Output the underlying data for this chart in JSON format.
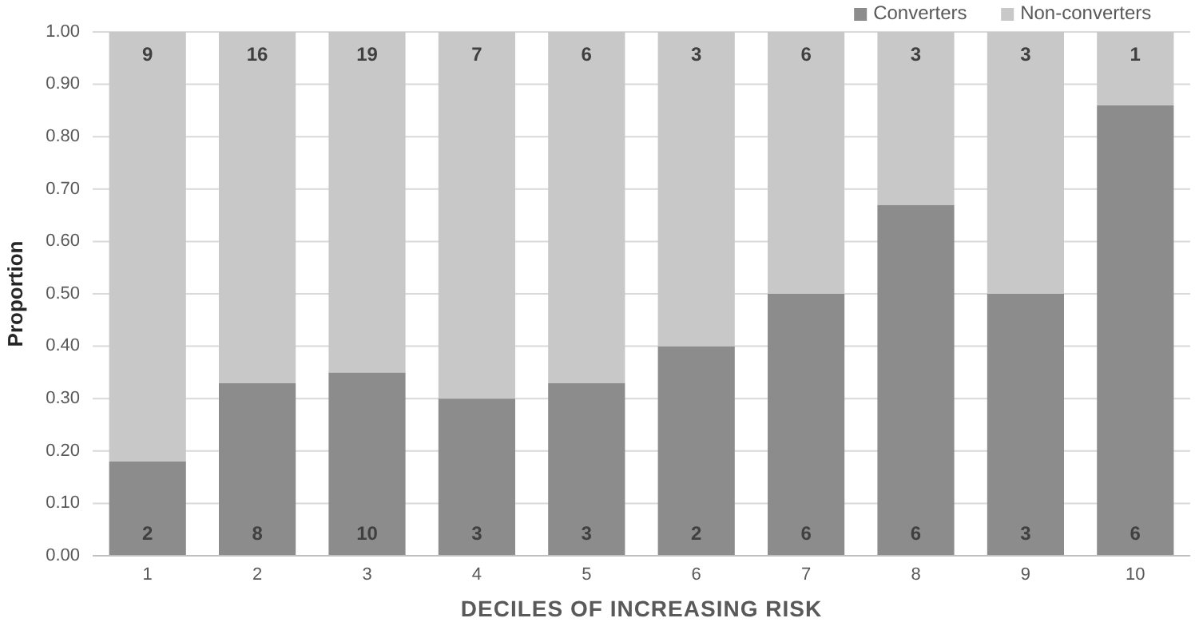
{
  "chart_data": {
    "type": "bar",
    "stacked": true,
    "xlabel": "DECILES OF INCREASING RISK",
    "ylabel": "Proportion",
    "categories": [
      "1",
      "2",
      "3",
      "4",
      "5",
      "6",
      "7",
      "8",
      "9",
      "10"
    ],
    "series": [
      {
        "name": "Converters",
        "color": "#8c8c8c",
        "values": [
          0.18,
          0.33,
          0.35,
          0.3,
          0.33,
          0.4,
          0.5,
          0.67,
          0.5,
          0.86
        ]
      },
      {
        "name": "Non-converters",
        "color": "#c8c8c8",
        "values": [
          0.82,
          0.67,
          0.65,
          0.7,
          0.67,
          0.6,
          0.5,
          0.33,
          0.5,
          0.14
        ]
      }
    ],
    "annotations": [
      {
        "text": "2",
        "x": "1",
        "y": 0
      },
      {
        "text": "8",
        "x": "2",
        "y": 0
      },
      {
        "text": "10",
        "x": "3",
        "y": 0
      },
      {
        "text": "3",
        "x": "4",
        "y": 0
      },
      {
        "text": "3",
        "x": "5",
        "y": 0
      },
      {
        "text": "2",
        "x": "6",
        "y": 0
      },
      {
        "text": "6",
        "x": "7",
        "y": 0
      },
      {
        "text": "6",
        "x": "8",
        "y": 0
      },
      {
        "text": "3",
        "x": "9",
        "y": 0
      },
      {
        "text": "6",
        "x": "10",
        "y": 0
      },
      {
        "text": "9",
        "x": "1",
        "y": 1
      },
      {
        "text": "16",
        "x": "2",
        "y": 1
      },
      {
        "text": "19",
        "x": "3",
        "y": 1
      },
      {
        "text": "7",
        "x": "4",
        "y": 1
      },
      {
        "text": "6",
        "x": "5",
        "y": 1
      },
      {
        "text": "3",
        "x": "6",
        "y": 1
      },
      {
        "text": "6",
        "x": "7",
        "y": 1
      },
      {
        "text": "3",
        "x": "8",
        "y": 1
      },
      {
        "text": "3",
        "x": "9",
        "y": 1
      },
      {
        "text": "1",
        "x": "10",
        "y": 1
      }
    ],
    "ylim": [
      0,
      1
    ],
    "yticks": [
      {
        "value": 0,
        "label": "0.00"
      },
      {
        "value": 0.1,
        "label": "0.10"
      },
      {
        "value": 0.2,
        "label": "0.20"
      },
      {
        "value": 0.3,
        "label": "0.30"
      },
      {
        "value": 0.4,
        "label": "0.40"
      },
      {
        "value": 0.5,
        "label": "0.50"
      },
      {
        "value": 0.6,
        "label": "0.60"
      },
      {
        "value": 0.7,
        "label": "0.70"
      },
      {
        "value": 0.8,
        "label": "0.80"
      },
      {
        "value": 0.9,
        "label": "0.90"
      },
      {
        "value": 1,
        "label": "1.00"
      }
    ],
    "grid": "y",
    "legend": "top right"
  }
}
